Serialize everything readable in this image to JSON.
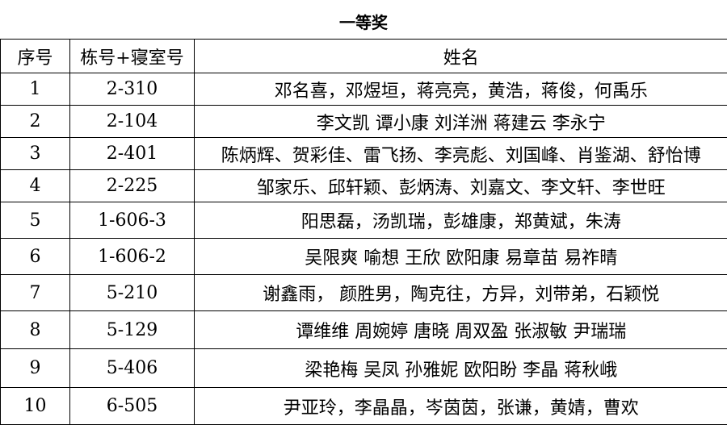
{
  "title": "一等奖",
  "table": {
    "header": [
      "序号",
      "栋号+寝室号",
      "姓名"
    ],
    "rows": [
      [
        "1",
        "2-310",
        "邓名喜，邓煜垣，蒋亮亮，黄浩，蒋俊，何禹乐"
      ],
      [
        "2",
        "2-104",
        "李文凯 谭小康 刘洋洲 蒋建云 李永宁"
      ],
      [
        "3",
        "2-401",
        "陈炳辉、贺彩佳、雷飞扬、李亮彪、刘国峰、肖鉴湖、舒怡博"
      ],
      [
        "4",
        "2-225",
        "邹家乐、邱轩颖、彭炳涛、刘嘉文、李文轩、李世旺"
      ],
      [
        "5",
        "1-606-3",
        "阳思磊，汤凯瑞，彭雄康，郑黄斌，朱涛"
      ],
      [
        "6",
        "1-606-2",
        "吴限爽 喻想 王欣 欧阳康 易章苗 易祚晴"
      ],
      [
        "7",
        "5-210",
        "谢鑫雨， 颜胜男，陶克往，方异，刘带弟，石颖悦"
      ],
      [
        "8",
        "5-129",
        "谭维维 周婉婷 唐晓 周双盈 张淑敏 尹瑞瑞"
      ],
      [
        "9",
        "5-406",
        "梁艳梅 吴凤 孙雅妮 欧阳盼 李晶 蒋秋峨"
      ],
      [
        "10",
        "6-505",
        "尹亚玲，李晶晶，岑茵茵，张谦，黄婧，曹欢"
      ]
    ]
  }
}
